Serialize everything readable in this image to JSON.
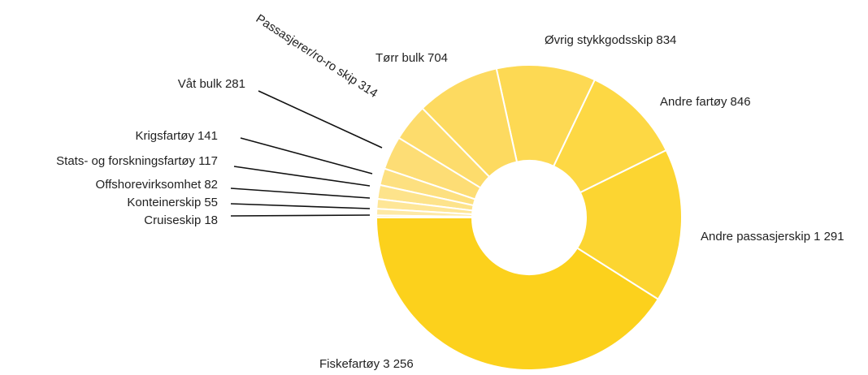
{
  "chart_data": {
    "type": "donut",
    "categories": [
      "Fiskefartøy",
      "Andre passasjerskip",
      "Andre fartøy",
      "Øvrig stykkgodsskip",
      "Tørr bulk",
      "Passasjerer/ro-ro skip",
      "Våt bulk",
      "Krigsfartøy",
      "Stats- og forskningsfartøy",
      "Offshorevirksomhet",
      "Konteinerskip",
      "Cruiseskip"
    ],
    "values": [
      3256,
      1291,
      846,
      834,
      704,
      314,
      281,
      141,
      117,
      82,
      55,
      18
    ],
    "value_labels": [
      "3 256",
      "1 291",
      "846",
      "834",
      "704",
      "314",
      "281",
      "141",
      "117",
      "82",
      "55",
      "18"
    ],
    "colors": [
      "#fcd11c",
      "#fcd531",
      "#fdd844",
      "#fdd953",
      "#fdda60",
      "#fddc6c",
      "#fddd75",
      "#fde080",
      "#fde38b",
      "#fee697",
      "#fee9a5",
      "#feedb4"
    ]
  }
}
